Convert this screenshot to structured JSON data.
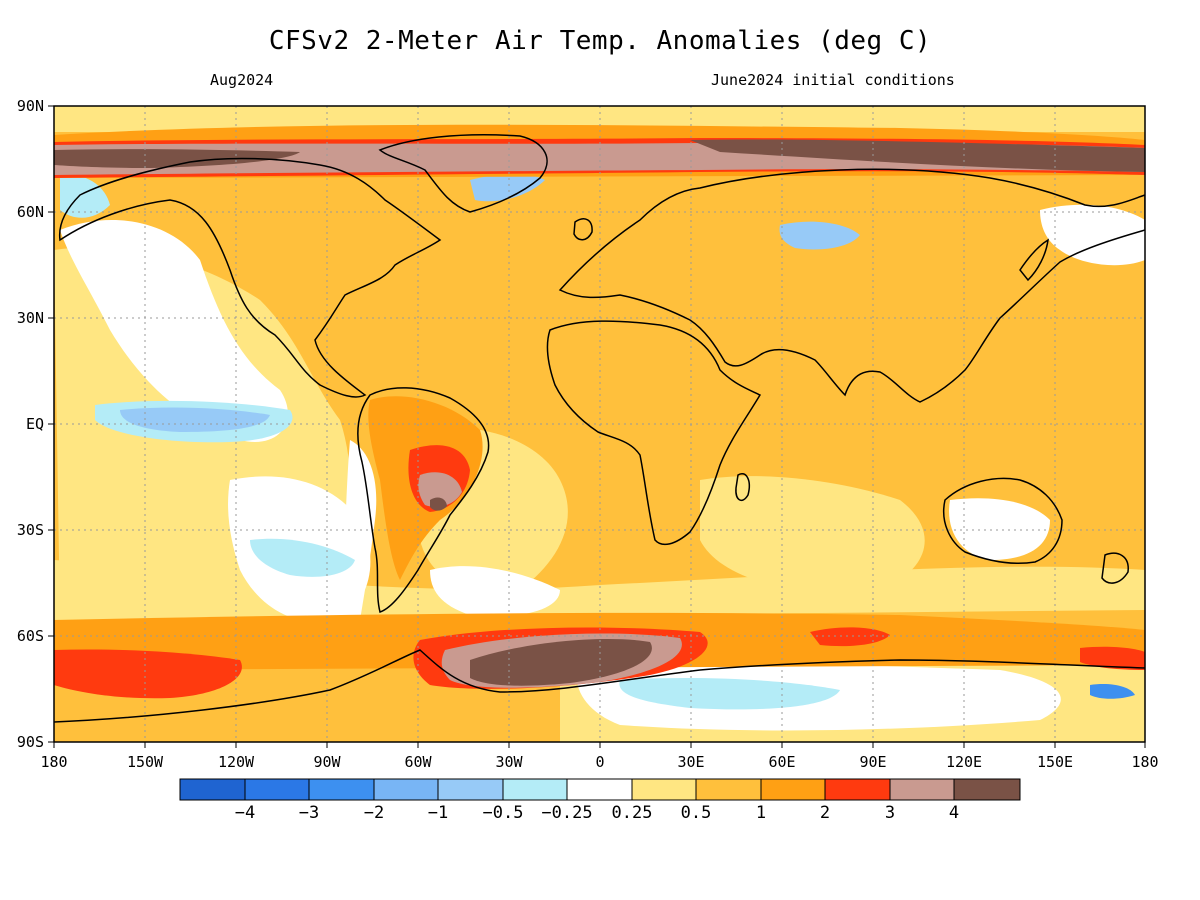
{
  "title": "CFSv2 2-Meter Air Temp. Anomalies (deg C)",
  "subtitle_left": "Aug2024",
  "subtitle_right": "June2024 initial conditions",
  "axes": {
    "lat_labels": [
      "90N",
      "60N",
      "30N",
      "EQ",
      "30S",
      "60S",
      "90S"
    ],
    "lon_labels": [
      "180",
      "150W",
      "120W",
      "90W",
      "60W",
      "30W",
      "0",
      "30E",
      "60E",
      "90E",
      "120E",
      "150E",
      "180"
    ]
  },
  "colorbar": {
    "colors": [
      "#1f64d1",
      "#2b78e6",
      "#3d90f0",
      "#78b5f5",
      "#97caf7",
      "#b4ecf7",
      "#ffffff",
      "#ffe682",
      "#ffc03c",
      "#ffa014",
      "#ff3a0f",
      "#c99a90",
      "#7a5246"
    ],
    "labels": [
      "−4",
      "−3",
      "−2",
      "−1",
      "−0.5",
      "−0.25",
      "0.25",
      "0.5",
      "1",
      "2",
      "3",
      "4"
    ]
  },
  "map_colors": {
    "background": "#ffc03c",
    "ocean_white": "#ffffff",
    "pale_yellow": "#ffe682",
    "orange": "#ffa014",
    "red": "#ff3a0f",
    "pink": "#c99a90",
    "brown": "#7a5246",
    "light_blue": "#b4ecf7",
    "mid_blue": "#97caf7",
    "blue": "#78b5f5"
  }
}
